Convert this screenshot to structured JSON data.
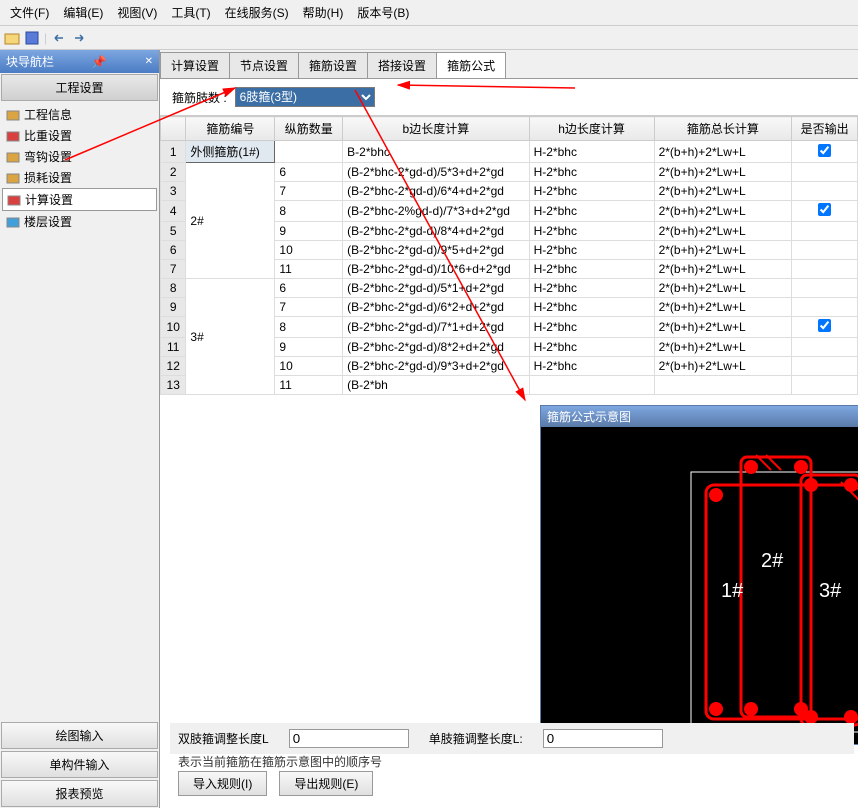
{
  "menu": {
    "file": "文件(F)",
    "edit": "编辑(E)",
    "view": "视图(V)",
    "tool": "工具(T)",
    "online": "在线服务(S)",
    "help": "帮助(H)",
    "version": "版本号(B)"
  },
  "sidebar": {
    "title": "块导航栏",
    "section_top": "工程设置",
    "items": [
      {
        "label": "工程信息",
        "icon": "#d9a441"
      },
      {
        "label": "比重设置",
        "icon": "#d94141"
      },
      {
        "label": "弯钩设置",
        "icon": "#d9a441"
      },
      {
        "label": "损耗设置",
        "icon": "#d9a441"
      },
      {
        "label": "计算设置",
        "icon": "#d94141",
        "selected": true
      },
      {
        "label": "楼层设置",
        "icon": "#41a0d9"
      }
    ],
    "btn_draw": "绘图输入",
    "btn_single": "单构件输入",
    "btn_report": "报表预览"
  },
  "tabs": [
    "计算设置",
    "节点设置",
    "箍筋设置",
    "搭接设置",
    "箍筋公式"
  ],
  "active_tab": 4,
  "dropdown": {
    "label": "箍筋肢数 :",
    "value": "6肢箍(3型)"
  },
  "table": {
    "headers": [
      "",
      "箍筋编号",
      "纵筋数量",
      "b边长度计算",
      "h边长度计算",
      "箍筋总长计算",
      "是否输出"
    ],
    "col_widths": [
      "24px",
      "84px",
      "64px",
      "176px",
      "118px",
      "130px",
      "62px"
    ],
    "rows": [
      {
        "n": "1",
        "id": "外侧箍筋(1#)",
        "cnt": "",
        "b": "B-2*bhc",
        "h": "H-2*bhc",
        "t": "2*(b+h)+2*Lw+L",
        "chk": true,
        "span": 1,
        "sel": true
      },
      {
        "n": "2",
        "id": "2#",
        "cnt": "6",
        "b": "(B-2*bhc-2*gd-d)/5*3+d+2*gd",
        "h": "H-2*bhc",
        "t": "2*(b+h)+2*Lw+L",
        "sp_start": true,
        "sp": 6
      },
      {
        "n": "3",
        "id": "",
        "cnt": "7",
        "b": "(B-2*bhc-2*gd-d)/6*4+d+2*gd",
        "h": "H-2*bhc",
        "t": "2*(b+h)+2*Lw+L"
      },
      {
        "n": "4",
        "id": "",
        "cnt": "8",
        "b": "(B-2*bhc-2%gd-d)/7*3+d+2*gd",
        "h": "H-2*bhc",
        "t": "2*(b+h)+2*Lw+L",
        "chk": true,
        "chk_row": true
      },
      {
        "n": "5",
        "id": "",
        "cnt": "9",
        "b": "(B-2*bhc-2*gd-d)/8*4+d+2*gd",
        "h": "H-2*bhc",
        "t": "2*(b+h)+2*Lw+L"
      },
      {
        "n": "6",
        "id": "",
        "cnt": "10",
        "b": "(B-2*bhc-2*gd-d)/9*5+d+2*gd",
        "h": "H-2*bhc",
        "t": "2*(b+h)+2*Lw+L"
      },
      {
        "n": "7",
        "id": "",
        "cnt": "11",
        "b": "(B-2*bhc-2*gd-d)/10*6+d+2*gd",
        "h": "H-2*bhc",
        "t": "2*(b+h)+2*Lw+L"
      },
      {
        "n": "8",
        "id": "3#",
        "cnt": "6",
        "b": "(B-2*bhc-2*gd-d)/5*1+d+2*gd",
        "h": "H-2*bhc",
        "t": "2*(b+h)+2*Lw+L",
        "sp_start": true,
        "sp": 6
      },
      {
        "n": "9",
        "id": "",
        "cnt": "7",
        "b": "(B-2*bhc-2*gd-d)/6*2+d+2*gd",
        "h": "H-2*bhc",
        "t": "2*(b+h)+2*Lw+L"
      },
      {
        "n": "10",
        "id": "",
        "cnt": "8",
        "b": "(B-2*bhc-2*gd-d)/7*1+d+2*gd",
        "h": "H-2*bhc",
        "t": "2*(b+h)+2*Lw+L",
        "chk": true,
        "chk_row": true
      },
      {
        "n": "11",
        "id": "",
        "cnt": "9",
        "b": "(B-2*bhc-2*gd-d)/8*2+d+2*gd",
        "h": "H-2*bhc",
        "t": "2*(b+h)+2*Lw+L"
      },
      {
        "n": "12",
        "id": "",
        "cnt": "10",
        "b": "(B-2*bhc-2*gd-d)/9*3+d+2*gd",
        "h": "H-2*bhc",
        "t": "2*(b+h)+2*Lw+L"
      },
      {
        "n": "13",
        "id": "",
        "cnt": "11",
        "b": "(B-2*bh",
        "h": "",
        "t": ""
      }
    ]
  },
  "diagram": {
    "title": "箍筋公式示意图",
    "labels": {
      "l1": "1#",
      "l2": "2#",
      "l3": "3#"
    },
    "colors": {
      "bg": "#000000",
      "stroke": "#ff0000",
      "fill": "#ff0000",
      "text": "#ffffff",
      "frame": "#ffffff"
    }
  },
  "bottom": {
    "dbl_label": "双肢箍调整长度L",
    "dbl_val": "0",
    "sgl_label": "单肢箍调整长度L:",
    "sgl_val": "0"
  },
  "hint": "表示当前箍筋在箍筋示意图中的顺序号",
  "btns": {
    "import": "导入规则(I)",
    "export": "导出规则(E)"
  },
  "annot": {
    "arrow_color": "#ff0000"
  }
}
